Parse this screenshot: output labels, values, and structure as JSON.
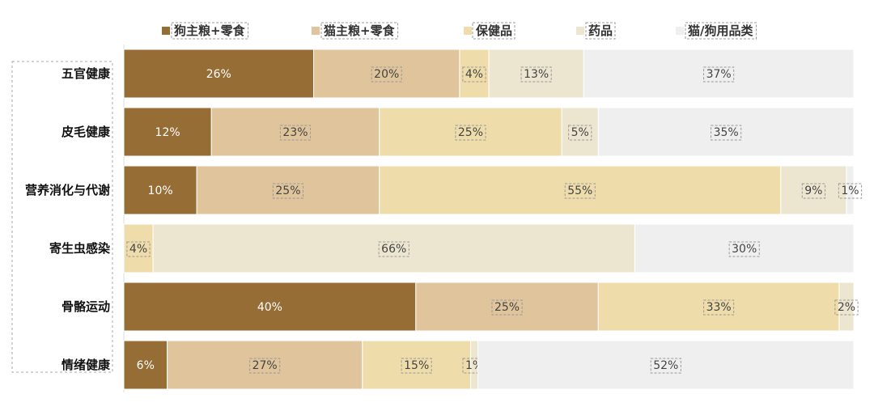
{
  "chart_data": {
    "type": "bar",
    "orientation": "horizontal",
    "stacked": true,
    "normalized": true,
    "categories": [
      "五官健康",
      "皮毛健康",
      "营养消化与代谢",
      "寄生虫感染",
      "骨骼运动",
      "情绪健康"
    ],
    "series": [
      {
        "name": "狗主粮+零食",
        "color": "#976d36",
        "values": [
          26,
          12,
          10,
          0,
          40,
          6
        ]
      },
      {
        "name": "猫主粮+零食",
        "color": "#dfc49c",
        "values": [
          20,
          23,
          25,
          0,
          25,
          27
        ]
      },
      {
        "name": "保健品",
        "color": "#eedcab",
        "values": [
          4,
          25,
          55,
          4,
          33,
          15
        ]
      },
      {
        "name": "药品",
        "color": "#ece5d0",
        "values": [
          13,
          5,
          9,
          66,
          2,
          1
        ]
      },
      {
        "name": "猫/狗用品类",
        "color": "#efefef",
        "values": [
          37,
          35,
          1,
          30,
          0,
          52
        ]
      }
    ],
    "value_suffix": "%",
    "legend_position": "top",
    "grid": false
  }
}
